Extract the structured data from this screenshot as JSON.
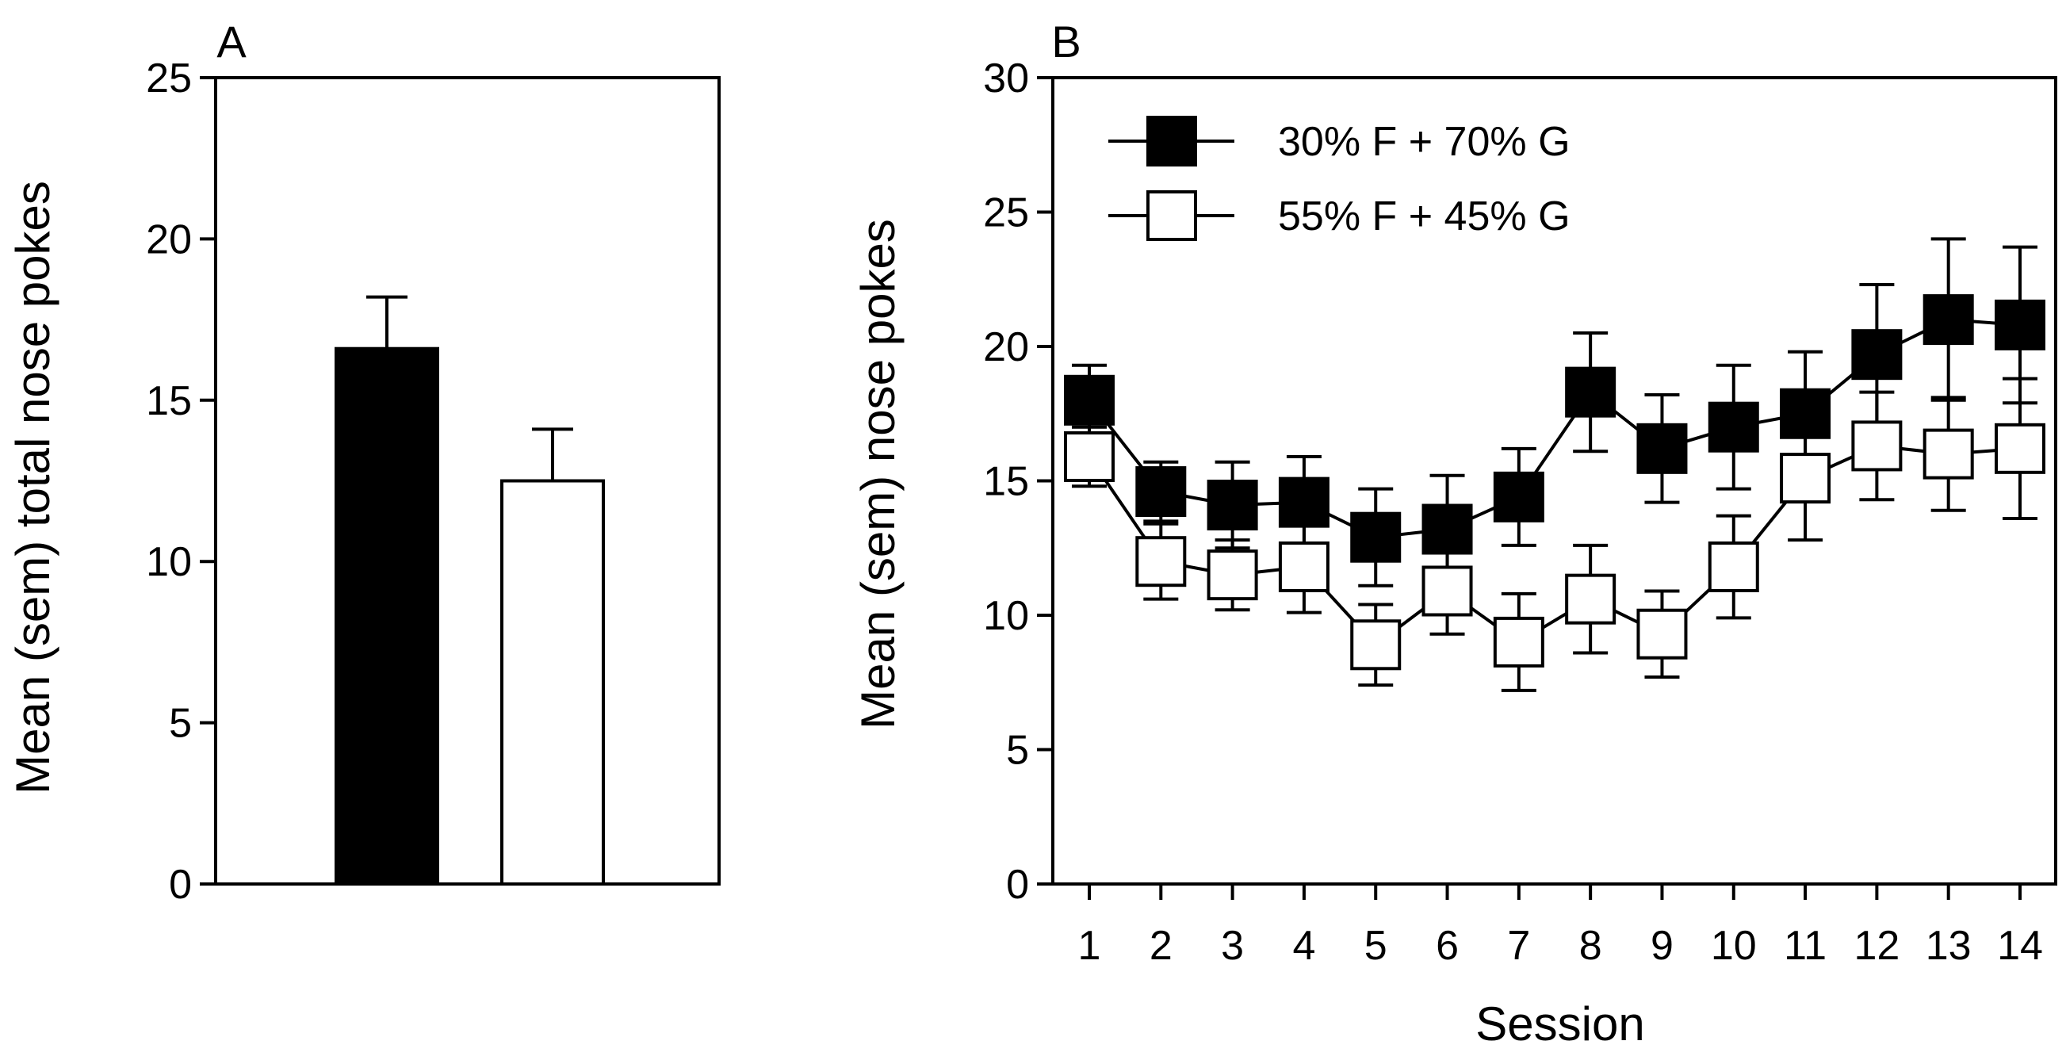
{
  "chart_data": [
    {
      "panel": "A",
      "type": "bar",
      "title": "",
      "xlabel": "",
      "ylabel": "Mean (sem) total nose pokes",
      "ylim": [
        0,
        25
      ],
      "yticks": [
        0,
        5,
        10,
        15,
        20,
        25
      ],
      "categories": [
        "30% F + 70% G",
        "55% F + 45% G"
      ],
      "values": [
        16.6,
        12.5
      ],
      "errors": [
        1.6,
        1.6
      ],
      "fills": [
        "#000000",
        "#ffffff"
      ]
    },
    {
      "panel": "B",
      "type": "line",
      "title": "",
      "xlabel": "Session",
      "ylabel": "Mean (sem) nose pokes",
      "ylim": [
        0,
        30
      ],
      "yticks": [
        0,
        5,
        10,
        15,
        20,
        25,
        30
      ],
      "x": [
        1,
        2,
        3,
        4,
        5,
        6,
        7,
        8,
        9,
        10,
        11,
        12,
        13,
        14
      ],
      "legend_position": "top-left",
      "series": [
        {
          "name": "30% F + 70% G",
          "marker": "filled-square",
          "color": "#000000",
          "values": [
            18.0,
            14.6,
            14.1,
            14.2,
            12.9,
            13.2,
            14.4,
            18.3,
            16.2,
            17.0,
            17.5,
            19.7,
            21.0,
            20.8
          ],
          "errors": [
            1.3,
            1.1,
            1.6,
            1.7,
            1.8,
            2.0,
            1.8,
            2.2,
            2.0,
            2.3,
            2.3,
            2.6,
            3.0,
            2.9
          ]
        },
        {
          "name": "55% F + 45% G",
          "marker": "open-square",
          "color": "#000000",
          "values": [
            15.9,
            12.0,
            11.5,
            11.8,
            8.9,
            10.9,
            9.0,
            10.6,
            9.3,
            11.8,
            15.1,
            16.3,
            16.0,
            16.2
          ],
          "errors": [
            1.1,
            1.4,
            1.3,
            1.7,
            1.5,
            1.6,
            1.8,
            2.0,
            1.6,
            1.9,
            2.3,
            2.0,
            2.1,
            2.6
          ]
        }
      ]
    }
  ],
  "panel_labels": {
    "a": "A",
    "b": "B"
  }
}
